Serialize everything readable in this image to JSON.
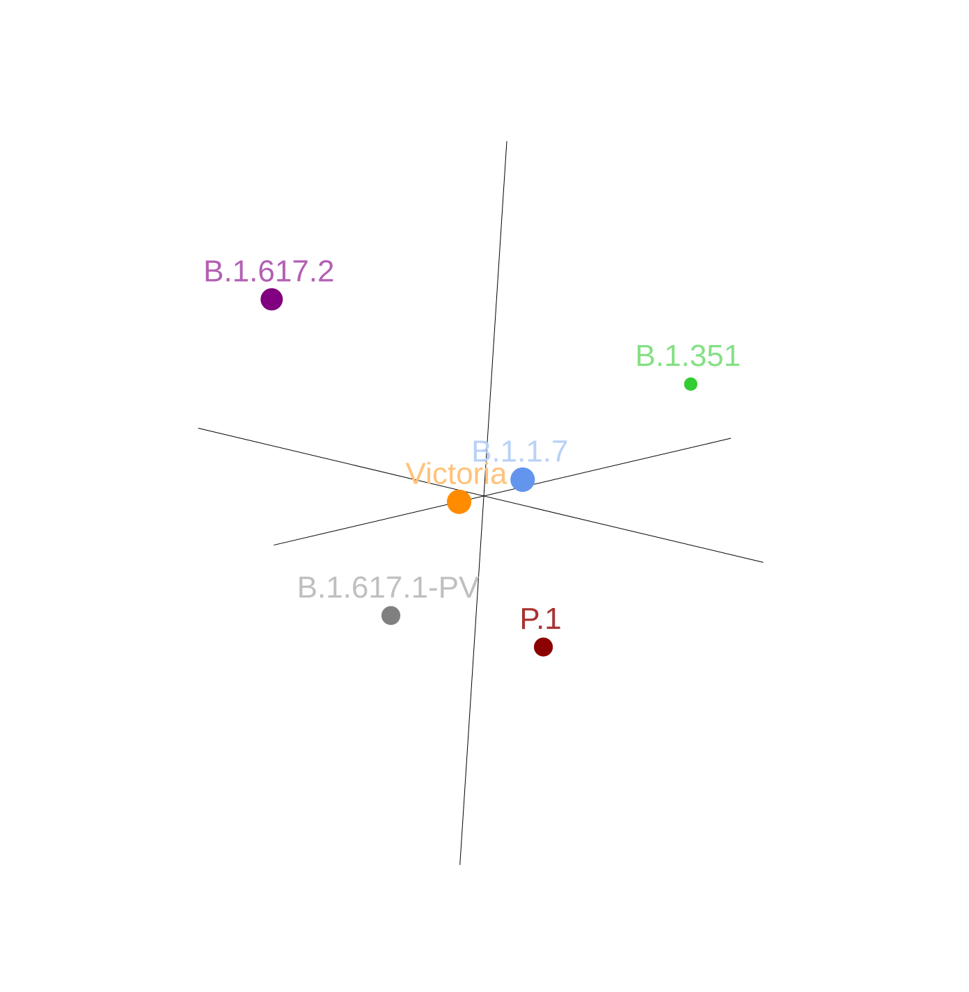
{
  "chart_data": {
    "type": "scatter",
    "projection": "3d",
    "grid": false,
    "points": [
      {
        "label": "B.1.617.2",
        "x": -0.6,
        "y": 0.25,
        "z": 0.6,
        "point_color": "#800080",
        "label_color": "#b35fb3",
        "marker_size": 1.0
      },
      {
        "label": "B.1.351",
        "x": 0.95,
        "y": 0.1,
        "z": 0.14,
        "point_color": "#33cc33",
        "label_color": "#85e085",
        "marker_size": 0.6
      },
      {
        "label": "B.1.1.7",
        "x": 0.22,
        "y": 0.05,
        "z": 0.0,
        "point_color": "#6495ed",
        "label_color": "#b9d1f8",
        "marker_size": 1.1
      },
      {
        "label": "Victoria",
        "x": -0.1,
        "y": 0.0,
        "z": 0.0,
        "point_color": "#ff8c00",
        "label_color": "#ffc27a",
        "marker_size": 1.1
      },
      {
        "label": "B.1.617.1-PV",
        "x": -0.35,
        "y": 0.0,
        "z": -0.28,
        "point_color": "#808080",
        "label_color": "#bfbfbf",
        "marker_size": 0.85
      },
      {
        "label": "P.1",
        "x": 0.0,
        "y": -0.22,
        "z": -0.38,
        "point_color": "#8b0000",
        "label_color": "#a83232",
        "marker_size": 0.85
      }
    ]
  }
}
